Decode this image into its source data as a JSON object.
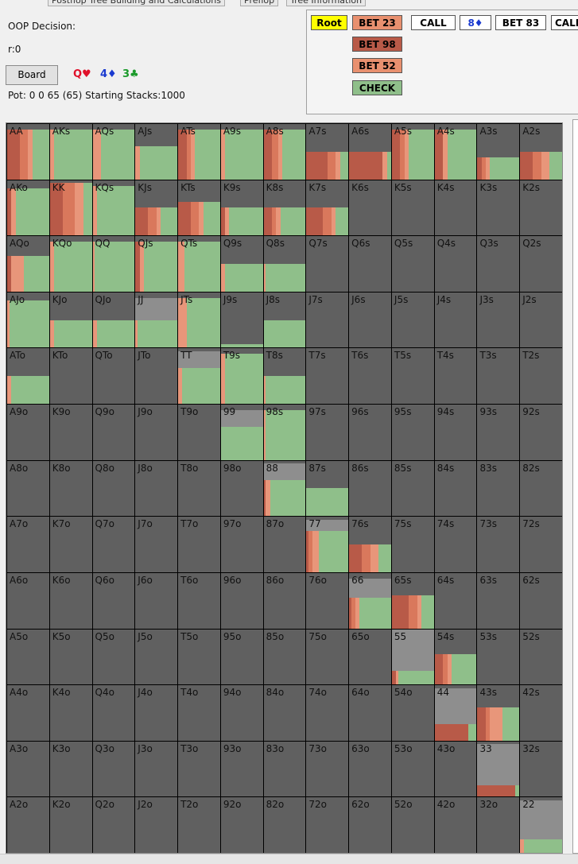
{
  "tabs": [
    "Postflop Tree Building and Calculations",
    "Preflop",
    "Tree Information"
  ],
  "info": {
    "decision": "OOP Decision:",
    "line": "r:0",
    "board_button": "Board",
    "board": [
      "Q♥",
      "4♦",
      "3♣"
    ],
    "pot": "Pot: 0 0 65 (65) Starting Stacks:1000"
  },
  "actions": {
    "row": [
      "Root",
      "BET 23",
      "CALL",
      "8♦",
      "BET 83",
      "CALL"
    ],
    "column": [
      "BET 98",
      "BET 52",
      "CHECK"
    ]
  },
  "grid": {
    "rows": [
      [
        "AA",
        "AKs",
        "AQs",
        "AJs",
        "ATs",
        "A9s",
        "A8s",
        "A7s",
        "A6s",
        "A5s",
        "A4s",
        "A3s",
        "A2s"
      ],
      [
        "AKo",
        "KK",
        "KQs",
        "KJs",
        "KTs",
        "K9s",
        "K8s",
        "K7s",
        "K6s",
        "K5s",
        "K4s",
        "K3s",
        "K2s"
      ],
      [
        "AQo",
        "KQo",
        "QQ",
        "QJs",
        "QTs",
        "Q9s",
        "Q8s",
        "Q7s",
        "Q6s",
        "Q5s",
        "Q4s",
        "Q3s",
        "Q2s"
      ],
      [
        "AJo",
        "KJo",
        "QJo",
        "JJ",
        "JTs",
        "J9s",
        "J8s",
        "J7s",
        "J6s",
        "J5s",
        "J4s",
        "J3s",
        "J2s"
      ],
      [
        "ATo",
        "KTo",
        "QTo",
        "JTo",
        "TT",
        "T9s",
        "T8s",
        "T7s",
        "T6s",
        "T5s",
        "T4s",
        "T3s",
        "T2s"
      ],
      [
        "A9o",
        "K9o",
        "Q9o",
        "J9o",
        "T9o",
        "99",
        "98s",
        "97s",
        "96s",
        "95s",
        "94s",
        "93s",
        "92s"
      ],
      [
        "A8o",
        "K8o",
        "Q8o",
        "J8o",
        "T8o",
        "98o",
        "88",
        "87s",
        "86s",
        "85s",
        "84s",
        "83s",
        "82s"
      ],
      [
        "A7o",
        "K7o",
        "Q7o",
        "J7o",
        "T7o",
        "97o",
        "87o",
        "77",
        "76s",
        "75s",
        "74s",
        "73s",
        "72s"
      ],
      [
        "A6o",
        "K6o",
        "Q6o",
        "J6o",
        "T6o",
        "96o",
        "86o",
        "76o",
        "66",
        "65s",
        "64s",
        "63s",
        "62s"
      ],
      [
        "A5o",
        "K5o",
        "Q5o",
        "J5o",
        "T5o",
        "95o",
        "85o",
        "75o",
        "65o",
        "55",
        "54s",
        "53s",
        "52s"
      ],
      [
        "A4o",
        "K4o",
        "Q4o",
        "J4o",
        "T4o",
        "94o",
        "84o",
        "74o",
        "64o",
        "54o",
        "44",
        "43s",
        "42s"
      ],
      [
        "A3o",
        "K3o",
        "Q3o",
        "J3o",
        "T3o",
        "93o",
        "83o",
        "73o",
        "63o",
        "53o",
        "43o",
        "33",
        "32s"
      ],
      [
        "A2o",
        "K2o",
        "Q2o",
        "J2o",
        "T2o",
        "92o",
        "82o",
        "72o",
        "62o",
        "52o",
        "42o",
        "32o",
        "22"
      ]
    ]
  }
}
